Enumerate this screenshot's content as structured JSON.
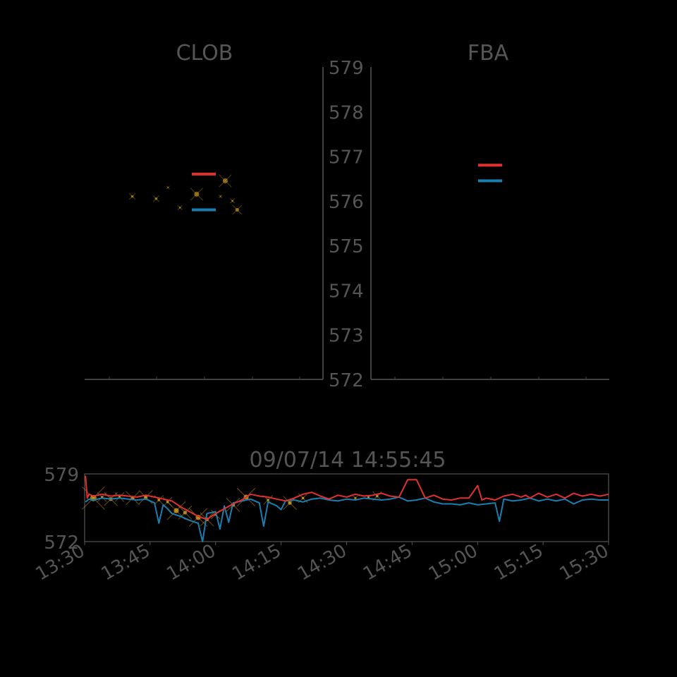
{
  "chart_data": [
    {
      "type": "scatter",
      "title": "CLOB",
      "ylim": [
        572,
        579
      ],
      "y_ticks": [
        "579",
        "578",
        "577",
        "576",
        "575",
        "574",
        "573",
        "572"
      ],
      "series": [
        {
          "color": "#e03030",
          "level_lines": [
            576.6
          ]
        },
        {
          "color": "#1a7fb0",
          "level_lines": [
            575.8
          ]
        }
      ],
      "points": [
        {
          "x": 0.2,
          "y": 576.1,
          "size": 2
        },
        {
          "x": 0.3,
          "y": 576.05,
          "size": 2
        },
        {
          "x": 0.35,
          "y": 576.3,
          "size": 1
        },
        {
          "x": 0.4,
          "y": 575.85,
          "size": 1.5
        },
        {
          "x": 0.47,
          "y": 576.15,
          "size": 4
        },
        {
          "x": 0.57,
          "y": 576.1,
          "size": 1
        },
        {
          "x": 0.59,
          "y": 576.45,
          "size": 4
        },
        {
          "x": 0.62,
          "y": 576.0,
          "size": 1.5
        },
        {
          "x": 0.64,
          "y": 575.8,
          "size": 3
        }
      ],
      "colors": {
        "marker": "#e8b020",
        "axis": "#555555",
        "text": "#555555"
      }
    },
    {
      "type": "line",
      "title": "FBA",
      "ylim": [
        572,
        579
      ],
      "series": [
        {
          "color": "#e03030",
          "level_lines": [
            576.8
          ]
        },
        {
          "color": "#1a7fb0",
          "level_lines": [
            576.45
          ]
        }
      ]
    },
    {
      "type": "line",
      "title": "09/07/14 14:55:45",
      "ylim": [
        572,
        579
      ],
      "y_ticks": [
        "579",
        "572"
      ],
      "x_ticks": [
        "13:30",
        "13:45",
        "14:00",
        "14:15",
        "14:30",
        "14:45",
        "15:00",
        "15:15",
        "15:30"
      ],
      "x_range_minutes": [
        810,
        930
      ],
      "series": [
        {
          "color": "#e03030",
          "x": [
            810.2,
            810.6,
            811,
            812,
            814,
            816,
            818,
            820,
            822,
            824,
            826,
            828,
            830,
            832,
            834,
            836,
            838,
            840,
            842,
            844,
            846,
            848,
            850,
            852,
            854,
            856,
            858,
            860,
            862,
            864,
            866,
            868,
            870,
            872,
            874,
            876,
            878,
            880,
            882,
            884,
            886,
            888,
            890,
            892,
            894,
            896,
            897,
            898,
            900,
            901,
            902,
            904,
            906,
            908,
            910,
            911,
            912,
            914,
            916,
            918,
            920,
            922,
            924,
            926,
            928,
            930
          ],
          "y": [
            578.8,
            576.5,
            576.9,
            576.7,
            576.9,
            576.7,
            576.8,
            576.7,
            576.6,
            576.8,
            576.6,
            576.4,
            576.2,
            575.6,
            575.1,
            574.6,
            574.3,
            574.9,
            575.4,
            575.9,
            576.3,
            576.9,
            576.7,
            576.6,
            576.4,
            576.2,
            576.5,
            576.9,
            577.1,
            576.7,
            576.4,
            576.8,
            576.6,
            576.9,
            576.7,
            576.8,
            577.0,
            576.7,
            576.6,
            578.4,
            578.4,
            576.5,
            576.8,
            576.4,
            576.3,
            576.5,
            576.5,
            576.5,
            577.8,
            576.3,
            576.5,
            576.3,
            576.7,
            576.9,
            576.6,
            576.8,
            576.5,
            577.0,
            576.6,
            576.9,
            576.5,
            577.0,
            576.7,
            576.9,
            576.7,
            576.9
          ]
        },
        {
          "color": "#1a7fb0",
          "x": [
            810.2,
            811,
            812,
            814,
            816,
            818,
            820,
            822,
            824,
            826,
            827,
            828,
            829,
            830,
            832,
            834,
            836,
            837,
            838,
            840,
            841,
            842,
            843,
            844,
            846,
            848,
            850,
            851,
            852,
            854,
            855,
            856,
            858,
            860,
            862,
            864,
            866,
            868,
            870,
            872,
            874,
            876,
            878,
            880,
            882,
            884,
            886,
            888,
            890,
            892,
            894,
            896,
            898,
            900,
            902,
            904,
            905,
            906,
            908,
            910,
            912,
            914,
            916,
            918,
            920,
            922,
            924,
            926,
            928,
            930
          ],
          "y": [
            576.1,
            576.4,
            576.3,
            576.5,
            576.4,
            576.5,
            576.4,
            576.3,
            576.4,
            576.0,
            573.9,
            575.8,
            575.4,
            574.9,
            574.6,
            574.2,
            573.9,
            572.0,
            574.9,
            575.1,
            573.3,
            575.7,
            574.0,
            576.0,
            576.2,
            576.4,
            576.0,
            573.6,
            576.1,
            575.7,
            575.3,
            576.2,
            576.3,
            576.1,
            576.4,
            576.5,
            576.3,
            576.2,
            576.4,
            576.3,
            576.5,
            576.4,
            576.3,
            576.4,
            576.6,
            576.2,
            576.3,
            576.5,
            576.1,
            575.9,
            575.9,
            575.8,
            576.0,
            575.8,
            575.9,
            576.0,
            574.1,
            576.4,
            576.2,
            576.3,
            576.5,
            576.2,
            576.4,
            576.2,
            576.4,
            575.9,
            576.3,
            576.4,
            576.3,
            576.3
          ]
        }
      ],
      "trades": [
        {
          "x": 812,
          "y": 576.5,
          "size": 5
        },
        {
          "x": 814,
          "y": 576.6,
          "size": 2
        },
        {
          "x": 816,
          "y": 576.4,
          "size": 3
        },
        {
          "x": 818,
          "y": 576.6,
          "size": 2
        },
        {
          "x": 821,
          "y": 576.5,
          "size": 3
        },
        {
          "x": 824,
          "y": 576.6,
          "size": 3
        },
        {
          "x": 827,
          "y": 576.3,
          "size": 2
        },
        {
          "x": 829,
          "y": 576.1,
          "size": 2
        },
        {
          "x": 831,
          "y": 575.2,
          "size": 4
        },
        {
          "x": 833,
          "y": 575.0,
          "size": 3
        },
        {
          "x": 836,
          "y": 574.5,
          "size": 4
        },
        {
          "x": 838,
          "y": 574.3,
          "size": 3
        },
        {
          "x": 840,
          "y": 574.8,
          "size": 2
        },
        {
          "x": 844,
          "y": 575.8,
          "size": 3
        },
        {
          "x": 847,
          "y": 576.6,
          "size": 4
        },
        {
          "x": 852,
          "y": 576.3,
          "size": 2
        },
        {
          "x": 857,
          "y": 576.0,
          "size": 3
        },
        {
          "x": 860,
          "y": 576.5,
          "size": 2
        },
        {
          "x": 872,
          "y": 576.5,
          "size": 1
        },
        {
          "x": 875,
          "y": 576.6,
          "size": 1
        },
        {
          "x": 877,
          "y": 576.7,
          "size": 2
        }
      ],
      "colors": {
        "marker": "#e8b020",
        "axis": "#555555",
        "text": "#555555"
      }
    }
  ]
}
